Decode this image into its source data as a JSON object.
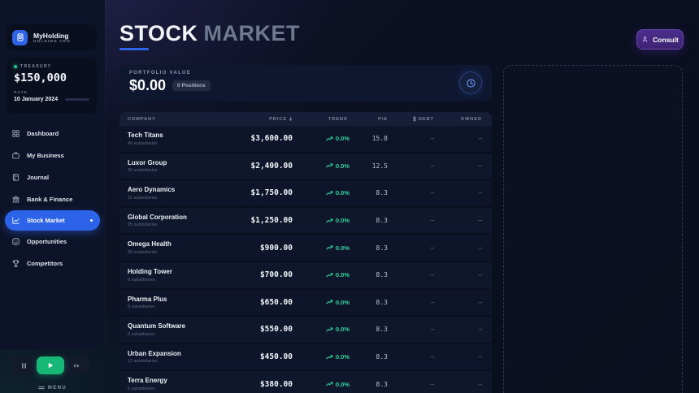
{
  "app": {
    "name": "MyHolding",
    "tagline": "HOLDING CEO"
  },
  "header": {
    "title_primary": "STOCK",
    "title_secondary": "MARKET",
    "consult_label": "Consult"
  },
  "sidebar": {
    "treasury_label": "TREASURY",
    "treasury_value": "$150,000",
    "date_label": "DATE",
    "date_value": "10 January 2024",
    "items": [
      {
        "label": "Dashboard",
        "icon": "dashboard-grid-icon",
        "active": false
      },
      {
        "label": "My Business",
        "icon": "briefcase-icon",
        "active": false
      },
      {
        "label": "Journal",
        "icon": "journal-icon",
        "active": false
      },
      {
        "label": "Bank & Finance",
        "icon": "bank-icon",
        "active": false
      },
      {
        "label": "Stock Market",
        "icon": "stock-chart-icon",
        "active": true
      },
      {
        "label": "Opportunities",
        "icon": "opportunities-icon",
        "active": false
      },
      {
        "label": "Competitors",
        "icon": "trophy-icon",
        "active": false
      }
    ],
    "menu_label": "MENU"
  },
  "portfolio": {
    "label": "PORTFOLIO VALUE",
    "value": "$0.00",
    "positions_badge": "0 Positions"
  },
  "table": {
    "headers": {
      "company": "COMPANY",
      "price": "PRICE",
      "trend": "TREND",
      "pe": "P/E",
      "debt": "DEBT",
      "owned": "OWNED"
    },
    "price_sort_icon": "sort-down-icon",
    "debt_header_icon": "dollar-icon",
    "trend_icon": "trend-up-icon",
    "rows": [
      {
        "company": "Tech Titans",
        "subsidiaries": "40 subsidiaries",
        "price": "$3,600.00",
        "trend": "0.0%",
        "pe": "15.8",
        "debt": "–",
        "owned": "–"
      },
      {
        "company": "Luxor Group",
        "subsidiaries": "30 subsidiaries",
        "price": "$2,400.00",
        "trend": "0.0%",
        "pe": "12.5",
        "debt": "–",
        "owned": "–"
      },
      {
        "company": "Aero Dynamics",
        "subsidiaries": "15 subsidiaries",
        "price": "$1,750.00",
        "trend": "0.0%",
        "pe": "8.3",
        "debt": "–",
        "owned": "–"
      },
      {
        "company": "Global Corporation",
        "subsidiaries": "25 subsidiaries",
        "price": "$1,250.00",
        "trend": "0.0%",
        "pe": "8.3",
        "debt": "–",
        "owned": "–"
      },
      {
        "company": "Omega Health",
        "subsidiaries": "20 subsidiaries",
        "price": "$900.00",
        "trend": "0.0%",
        "pe": "8.3",
        "debt": "–",
        "owned": "–"
      },
      {
        "company": "Holding Tower",
        "subsidiaries": "8 subsidiaries",
        "price": "$700.00",
        "trend": "0.0%",
        "pe": "8.3",
        "debt": "–",
        "owned": "–"
      },
      {
        "company": "Pharma Plus",
        "subsidiaries": "9 subsidiaries",
        "price": "$650.00",
        "trend": "0.0%",
        "pe": "8.3",
        "debt": "–",
        "owned": "–"
      },
      {
        "company": "Quantum Software",
        "subsidiaries": "6 subsidiaries",
        "price": "$550.00",
        "trend": "0.0%",
        "pe": "8.3",
        "debt": "–",
        "owned": "–"
      },
      {
        "company": "Urban Expansion",
        "subsidiaries": "12 subsidiaries",
        "price": "$450.00",
        "trend": "0.0%",
        "pe": "8.3",
        "debt": "–",
        "owned": "–"
      },
      {
        "company": "Terra Energy",
        "subsidiaries": "5 subsidiaries",
        "price": "$380.00",
        "trend": "0.0%",
        "pe": "8.3",
        "debt": "–",
        "owned": "–"
      }
    ]
  },
  "icons": {
    "logo": "building-icon",
    "consult": "person-icon",
    "portfolio_clock": "clock-icon",
    "pause": "pause-icon",
    "play": "play-icon",
    "fast_forward": "fast-forward-icon",
    "menu": "menu-icon"
  },
  "playback": {
    "state": "playing"
  },
  "colors": {
    "accent_blue": "#2c63e8",
    "trend_green": "#2fd49c",
    "treasury_green": "#22c58b",
    "consult_purple": "#4b2d8d",
    "play_green": "#17b877"
  }
}
